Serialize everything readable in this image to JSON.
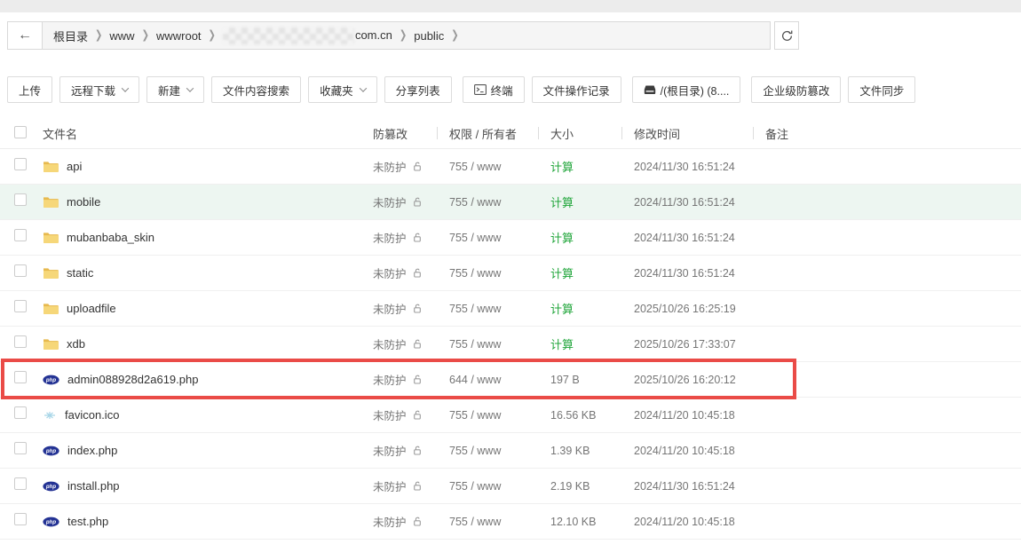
{
  "breadcrumb": {
    "back_icon": "←",
    "items": [
      {
        "name": "crumb-root",
        "label": "根目录",
        "blurred_prefix": false
      },
      {
        "name": "crumb-www",
        "label": "www",
        "blurred_prefix": false
      },
      {
        "name": "crumb-wwwroot",
        "label": "wwwroot",
        "blurred_prefix": false
      },
      {
        "name": "crumb-domain",
        "label": "com.cn",
        "blurred_prefix": true
      },
      {
        "name": "crumb-public",
        "label": "public",
        "blurred_prefix": false
      }
    ]
  },
  "toolbar": {
    "buttons": [
      {
        "name": "upload-button",
        "label": "上传",
        "caret": false,
        "icon": null,
        "group_start": false
      },
      {
        "name": "remote-download-button",
        "label": "远程下载",
        "caret": true,
        "icon": null,
        "group_start": false
      },
      {
        "name": "new-button",
        "label": "新建",
        "caret": true,
        "icon": null,
        "group_start": false
      },
      {
        "name": "file-content-search-button",
        "label": "文件内容搜索",
        "caret": false,
        "icon": null,
        "group_start": false
      },
      {
        "name": "favorites-button",
        "label": "收藏夹",
        "caret": true,
        "icon": null,
        "group_start": false
      },
      {
        "name": "share-list-button",
        "label": "分享列表",
        "caret": false,
        "icon": null,
        "group_start": false
      },
      {
        "name": "terminal-button",
        "label": "终端",
        "caret": false,
        "icon": "terminal-icon",
        "group_start": true
      },
      {
        "name": "file-operation-log-button",
        "label": "文件操作记录",
        "caret": false,
        "icon": null,
        "group_start": false
      },
      {
        "name": "root-disk-button",
        "label": "/(根目录) (8....",
        "caret": false,
        "icon": "disk-icon",
        "group_start": true
      },
      {
        "name": "enterprise-tamper-proof-button",
        "label": "企业级防篡改",
        "caret": false,
        "icon": null,
        "group_start": true
      },
      {
        "name": "file-sync-button",
        "label": "文件同步",
        "caret": false,
        "icon": null,
        "group_start": false
      }
    ]
  },
  "table": {
    "headers": {
      "name": "文件名",
      "tamper": "防篡改",
      "perm": "权限 / 所有者",
      "size": "大小",
      "mtime": "修改时间",
      "note": "备注"
    },
    "rows": [
      {
        "name": "api",
        "icon": "folder-icon",
        "tamper": "未防护",
        "perm": "755 / www",
        "size": "计算",
        "size_is_link": true,
        "mtime": "2024/11/30 16:51:24",
        "note": "",
        "row_bg_green": false,
        "red_box": false
      },
      {
        "name": "mobile",
        "icon": "folder-icon",
        "tamper": "未防护",
        "perm": "755 / www",
        "size": "计算",
        "size_is_link": true,
        "mtime": "2024/11/30 16:51:24",
        "note": "",
        "row_bg_green": true,
        "red_box": false
      },
      {
        "name": "mubanbaba_skin",
        "icon": "folder-icon",
        "tamper": "未防护",
        "perm": "755 / www",
        "size": "计算",
        "size_is_link": true,
        "mtime": "2024/11/30 16:51:24",
        "note": "",
        "row_bg_green": false,
        "red_box": false
      },
      {
        "name": "static",
        "icon": "folder-icon",
        "tamper": "未防护",
        "perm": "755 / www",
        "size": "计算",
        "size_is_link": true,
        "mtime": "2024/11/30 16:51:24",
        "note": "",
        "row_bg_green": false,
        "red_box": false
      },
      {
        "name": "uploadfile",
        "icon": "folder-icon",
        "tamper": "未防护",
        "perm": "755 / www",
        "size": "计算",
        "size_is_link": true,
        "mtime": "2025/10/26 16:25:19",
        "note": "",
        "row_bg_green": false,
        "red_box": false
      },
      {
        "name": "xdb",
        "icon": "folder-icon",
        "tamper": "未防护",
        "perm": "755 / www",
        "size": "计算",
        "size_is_link": true,
        "mtime": "2025/10/26 17:33:07",
        "note": "",
        "row_bg_green": false,
        "red_box": false
      },
      {
        "name": "admin088928d2a619.php",
        "icon": "php-file-icon",
        "tamper": "未防护",
        "perm": "644 / www",
        "size": "197 B",
        "size_is_link": false,
        "mtime": "2025/10/26 16:20:12",
        "note": "",
        "row_bg_green": false,
        "red_box": true
      },
      {
        "name": "favicon.ico",
        "icon": "ico-file-icon",
        "tamper": "未防护",
        "perm": "755 / www",
        "size": "16.56 KB",
        "size_is_link": false,
        "mtime": "2024/11/20 10:45:18",
        "note": "",
        "row_bg_green": false,
        "red_box": false
      },
      {
        "name": "index.php",
        "icon": "php-file-icon",
        "tamper": "未防护",
        "perm": "755 / www",
        "size": "1.39 KB",
        "size_is_link": false,
        "mtime": "2024/11/20 10:45:18",
        "note": "",
        "row_bg_green": false,
        "red_box": false
      },
      {
        "name": "install.php",
        "icon": "php-file-icon",
        "tamper": "未防护",
        "perm": "755 / www",
        "size": "2.19 KB",
        "size_is_link": false,
        "mtime": "2024/11/30 16:51:24",
        "note": "",
        "row_bg_green": false,
        "red_box": false
      },
      {
        "name": "test.php",
        "icon": "php-file-icon",
        "tamper": "未防护",
        "perm": "755 / www",
        "size": "12.10 KB",
        "size_is_link": false,
        "mtime": "2024/11/20 10:45:18",
        "note": "",
        "row_bg_green": false,
        "red_box": false
      }
    ]
  },
  "colors": {
    "accent_green": "#20a53a",
    "highlight_row": "#edf6f1",
    "red_box": "#ea4b47",
    "php_icon": "#243394",
    "folder_icon": "#f2c85a"
  }
}
